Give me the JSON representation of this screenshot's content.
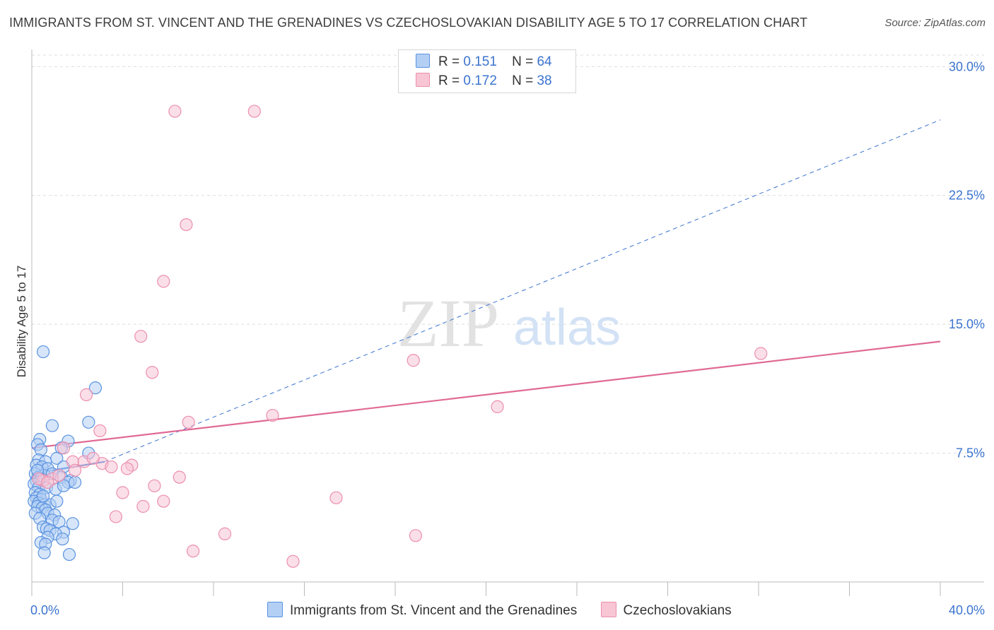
{
  "title": "IMMIGRANTS FROM ST. VINCENT AND THE GRENADINES VS CZECHOSLOVAKIAN DISABILITY AGE 5 TO 17 CORRELATION CHART",
  "source": "Source: ZipAtlas.com",
  "watermark": {
    "zip": "ZIP",
    "atlas": "atlas"
  },
  "legend": {
    "r_label": "R =",
    "n_label": "N =",
    "rows": [
      {
        "r": "0.151",
        "n": "64"
      },
      {
        "r": "0.172",
        "n": "38"
      }
    ]
  },
  "colors": {
    "blue_fill": "#b4cff4",
    "blue_stroke": "#5a93e0",
    "blue_line": "#3a72d0",
    "pink_fill": "#f8c5d5",
    "pink_stroke": "#ec8fae",
    "pink_line": "#e06a95",
    "axis_text": "#3b74cf",
    "grid": "#dddddd"
  },
  "chart_data": {
    "type": "scatter",
    "title": "IMMIGRANTS FROM ST. VINCENT AND THE GRENADINES VS CZECHOSLOVAKIAN DISABILITY AGE 5 TO 17 CORRELATION CHART",
    "xlabel": "",
    "ylabel": "Disability Age 5 to 17",
    "xlim": [
      0,
      40
    ],
    "ylim": [
      0,
      31
    ],
    "x_tick_labels": [
      "0.0%",
      "40.0%"
    ],
    "y_ticks": [
      7.5,
      15.0,
      22.5,
      30.0
    ],
    "y_tick_labels": [
      "7.5%",
      "15.0%",
      "22.5%",
      "30.0%"
    ],
    "grid": true,
    "legend_position": "top-center",
    "series": [
      {
        "name": "Immigrants from St. Vincent and the Grenadines",
        "color": "#5a93e0",
        "points": [
          [
            0.5,
            13.4
          ],
          [
            2.8,
            11.3
          ],
          [
            2.5,
            9.3
          ],
          [
            0.9,
            9.1
          ],
          [
            0.35,
            8.3
          ],
          [
            0.25,
            8.0
          ],
          [
            1.6,
            8.2
          ],
          [
            0.4,
            7.7
          ],
          [
            1.3,
            7.8
          ],
          [
            2.5,
            7.5
          ],
          [
            0.3,
            7.1
          ],
          [
            1.1,
            7.2
          ],
          [
            0.6,
            7.0
          ],
          [
            0.2,
            6.8
          ],
          [
            0.45,
            6.7
          ],
          [
            0.7,
            6.6
          ],
          [
            1.4,
            6.7
          ],
          [
            0.15,
            6.3
          ],
          [
            0.3,
            6.1
          ],
          [
            0.55,
            6.2
          ],
          [
            0.9,
            6.3
          ],
          [
            1.3,
            6.1
          ],
          [
            0.2,
            5.9
          ],
          [
            0.4,
            6.0
          ],
          [
            1.7,
            5.9
          ],
          [
            0.1,
            5.7
          ],
          [
            1.6,
            5.8
          ],
          [
            1.9,
            5.8
          ],
          [
            0.3,
            5.5
          ],
          [
            0.65,
            5.5
          ],
          [
            1.05,
            5.4
          ],
          [
            1.4,
            5.6
          ],
          [
            0.15,
            5.2
          ],
          [
            0.35,
            5.1
          ],
          [
            0.2,
            4.9
          ],
          [
            0.4,
            4.8
          ],
          [
            0.1,
            4.7
          ],
          [
            0.3,
            4.6
          ],
          [
            0.55,
            4.5
          ],
          [
            0.8,
            4.5
          ],
          [
            0.25,
            4.4
          ],
          [
            0.45,
            4.3
          ],
          [
            0.6,
            4.2
          ],
          [
            0.15,
            4.0
          ],
          [
            0.7,
            4.0
          ],
          [
            1.0,
            3.9
          ],
          [
            0.35,
            3.7
          ],
          [
            0.9,
            3.6
          ],
          [
            1.2,
            3.5
          ],
          [
            1.8,
            3.4
          ],
          [
            0.5,
            3.2
          ],
          [
            0.65,
            3.1
          ],
          [
            0.8,
            3.0
          ],
          [
            1.4,
            2.9
          ],
          [
            1.05,
            2.8
          ],
          [
            0.7,
            2.6
          ],
          [
            1.35,
            2.5
          ],
          [
            0.4,
            2.3
          ],
          [
            0.6,
            2.2
          ],
          [
            0.55,
            1.7
          ],
          [
            1.65,
            1.6
          ],
          [
            0.25,
            6.5
          ],
          [
            0.5,
            5.0
          ],
          [
            1.1,
            4.7
          ]
        ]
      },
      {
        "name": "Czechoslovakians",
        "color": "#ec8fae",
        "points": [
          [
            6.3,
            27.4
          ],
          [
            9.8,
            27.4
          ],
          [
            6.8,
            20.8
          ],
          [
            5.8,
            17.5
          ],
          [
            4.8,
            14.3
          ],
          [
            5.3,
            12.2
          ],
          [
            2.4,
            10.9
          ],
          [
            16.8,
            12.9
          ],
          [
            32.1,
            13.3
          ],
          [
            20.5,
            10.2
          ],
          [
            10.6,
            9.7
          ],
          [
            6.9,
            9.3
          ],
          [
            3.0,
            8.8
          ],
          [
            1.4,
            7.8
          ],
          [
            1.8,
            7.0
          ],
          [
            2.3,
            7.0
          ],
          [
            3.1,
            6.9
          ],
          [
            3.5,
            6.7
          ],
          [
            4.4,
            6.8
          ],
          [
            4.2,
            6.6
          ],
          [
            1.9,
            6.5
          ],
          [
            0.9,
            6.0
          ],
          [
            0.5,
            5.9
          ],
          [
            1.2,
            6.2
          ],
          [
            6.5,
            6.1
          ],
          [
            5.4,
            5.6
          ],
          [
            4.0,
            5.2
          ],
          [
            5.8,
            4.7
          ],
          [
            13.4,
            4.9
          ],
          [
            4.9,
            4.4
          ],
          [
            3.7,
            3.8
          ],
          [
            8.5,
            2.8
          ],
          [
            16.9,
            2.7
          ],
          [
            7.1,
            1.8
          ],
          [
            11.5,
            1.2
          ],
          [
            0.3,
            6.0
          ],
          [
            0.7,
            5.8
          ],
          [
            2.7,
            7.2
          ]
        ]
      }
    ],
    "trend_lines": [
      {
        "series": "Immigrants from St. Vincent and the Grenadines",
        "style": "solid",
        "x": [
          0,
          3.2
        ],
        "y": [
          6.3,
          7.0
        ]
      },
      {
        "series": "Immigrants from St. Vincent and the Grenadines",
        "style": "dashed",
        "x": [
          3.2,
          40
        ],
        "y": [
          7.0,
          26.9
        ]
      },
      {
        "series": "Czechoslovakians",
        "style": "solid",
        "x": [
          0,
          40
        ],
        "y": [
          7.8,
          14.0
        ]
      }
    ]
  }
}
